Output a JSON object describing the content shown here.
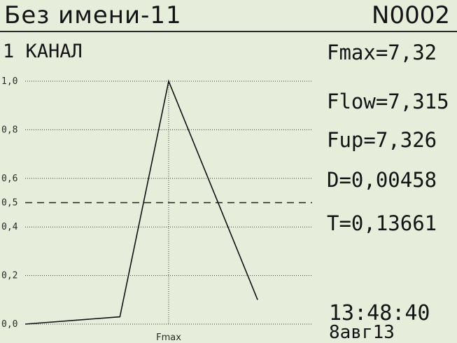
{
  "header": {
    "title": "Без имени-11",
    "number": "N0002"
  },
  "channel": "1 КАНАЛ",
  "metrics": {
    "fmax": "Fmax=7,32",
    "flow": "Flow=7,315",
    "fup": "Fup=7,326",
    "d": "D=0,00458",
    "t": "T=0,13661"
  },
  "clock": {
    "time": "13:48:40",
    "date": "8авг13"
  },
  "colors": {
    "background": "#e6eedb",
    "ink": "#141414"
  },
  "chart_data": {
    "type": "line",
    "xlabel": "Fmax",
    "ylabel": "",
    "ylim": [
      0,
      1
    ],
    "y_ticks": [
      {
        "value": 1.0,
        "label": "1,0"
      },
      {
        "value": 0.8,
        "label": "0,8"
      },
      {
        "value": 0.6,
        "label": "0,6"
      },
      {
        "value": 0.5,
        "label": "0,5"
      },
      {
        "value": 0.4,
        "label": "0,4"
      },
      {
        "value": 0.2,
        "label": "0,2"
      },
      {
        "value": 0.0,
        "label": "0,0"
      }
    ],
    "threshold": 0.5,
    "xlim": [
      0,
      1
    ],
    "peak_x": 0.5,
    "series": [
      {
        "x": [
          0.0,
          0.33,
          0.5,
          0.81
        ],
        "y": [
          0.0,
          0.03,
          1.0,
          0.1
        ]
      }
    ]
  }
}
